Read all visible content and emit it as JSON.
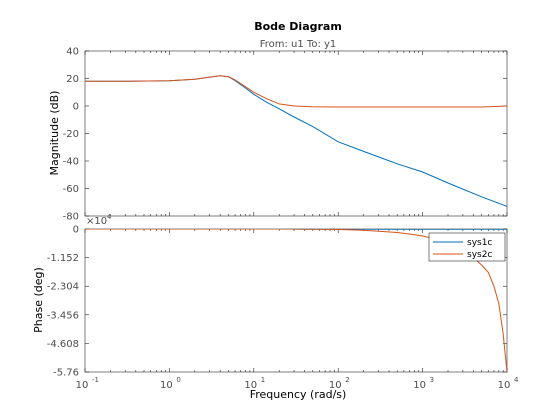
{
  "chart_data": {
    "type": "line",
    "title": "Bode Diagram",
    "subtitle": "From: u1  To: y1",
    "xlabel": "Frequency  (rad/s)",
    "xscale": "log",
    "xlim": [
      0.1,
      10000
    ],
    "x_ticks": [
      {
        "value": 0.1,
        "base": "10",
        "exp": "-1"
      },
      {
        "value": 1,
        "base": "10",
        "exp": "0"
      },
      {
        "value": 10,
        "base": "10",
        "exp": "1"
      },
      {
        "value": 100,
        "base": "10",
        "exp": "2"
      },
      {
        "value": 1000,
        "base": "10",
        "exp": "3"
      },
      {
        "value": 10000,
        "base": "10",
        "exp": "4"
      }
    ],
    "magnitude": {
      "ylabel": "Magnitude (dB)",
      "ylim": [
        -80,
        40
      ],
      "y_ticks": [
        "40",
        "20",
        "0",
        "-20",
        "-40",
        "-60",
        "-80"
      ],
      "y_tick_values": [
        40,
        20,
        0,
        -20,
        -40,
        -60,
        -80
      ],
      "series": [
        {
          "name": "sys1c",
          "color": "#0072BD",
          "x": [
            0.1,
            0.3,
            1,
            2,
            3,
            4,
            5,
            6,
            8,
            10,
            14,
            20,
            30,
            50,
            100,
            200,
            500,
            1000,
            2000,
            5000,
            10000
          ],
          "y": [
            18,
            18,
            18.3,
            19.5,
            21,
            22,
            21.2,
            18.5,
            13,
            8.5,
            3,
            -2,
            -8,
            -15,
            -26,
            -33,
            -42,
            -48,
            -56,
            -66,
            -73
          ]
        },
        {
          "name": "sys2c",
          "color": "#D95319",
          "x": [
            0.1,
            0.3,
            1,
            2,
            3,
            4,
            5,
            6,
            8,
            10,
            14,
            20,
            30,
            50,
            100,
            200,
            500,
            1000,
            2000,
            5000,
            10000
          ],
          "y": [
            18,
            18,
            18.3,
            19.5,
            21,
            22,
            21.4,
            19,
            14,
            10,
            5.5,
            1.5,
            0,
            -0.5,
            -0.7,
            -0.7,
            -0.7,
            -0.7,
            -0.7,
            -0.7,
            0
          ]
        }
      ]
    },
    "phase": {
      "ylabel": "Phase (deg)",
      "exponent_label": "×10",
      "exponent_value": "4",
      "ylim": [
        -5.76,
        0
      ],
      "y_ticks": [
        "0",
        "-1.152",
        "-2.304",
        "-3.456",
        "-4.608",
        "-5.76"
      ],
      "y_tick_values": [
        0,
        -1.152,
        -2.304,
        -3.456,
        -4.608,
        -5.76
      ],
      "series": [
        {
          "name": "sys1c",
          "color": "#0072BD",
          "x": [
            0.1,
            1,
            10,
            20,
            30,
            40,
            60,
            100,
            300,
            1000,
            10000
          ],
          "y": [
            0,
            0,
            0,
            0,
            -0.005,
            -0.01,
            -0.01,
            -0.01,
            -0.01,
            -0.01,
            -0.01
          ]
        },
        {
          "name": "sys2c",
          "color": "#D95319",
          "x": [
            0.1,
            1,
            10,
            30,
            60,
            100,
            200,
            300,
            500,
            700,
            1000,
            1500,
            2000,
            3000,
            4000,
            5000,
            6000,
            7000,
            8000,
            9000,
            10000
          ],
          "y": [
            0,
            0,
            0,
            0,
            -0.01,
            -0.02,
            -0.05,
            -0.09,
            -0.14,
            -0.2,
            -0.28,
            -0.43,
            -0.58,
            -0.86,
            -1.15,
            -1.45,
            -1.75,
            -2.3,
            -3.0,
            -4.2,
            -5.76
          ]
        }
      ]
    },
    "legend": {
      "placement": "top-right of phase plot",
      "entries": [
        "sys1c",
        "sys2c"
      ]
    },
    "grid": false
  }
}
